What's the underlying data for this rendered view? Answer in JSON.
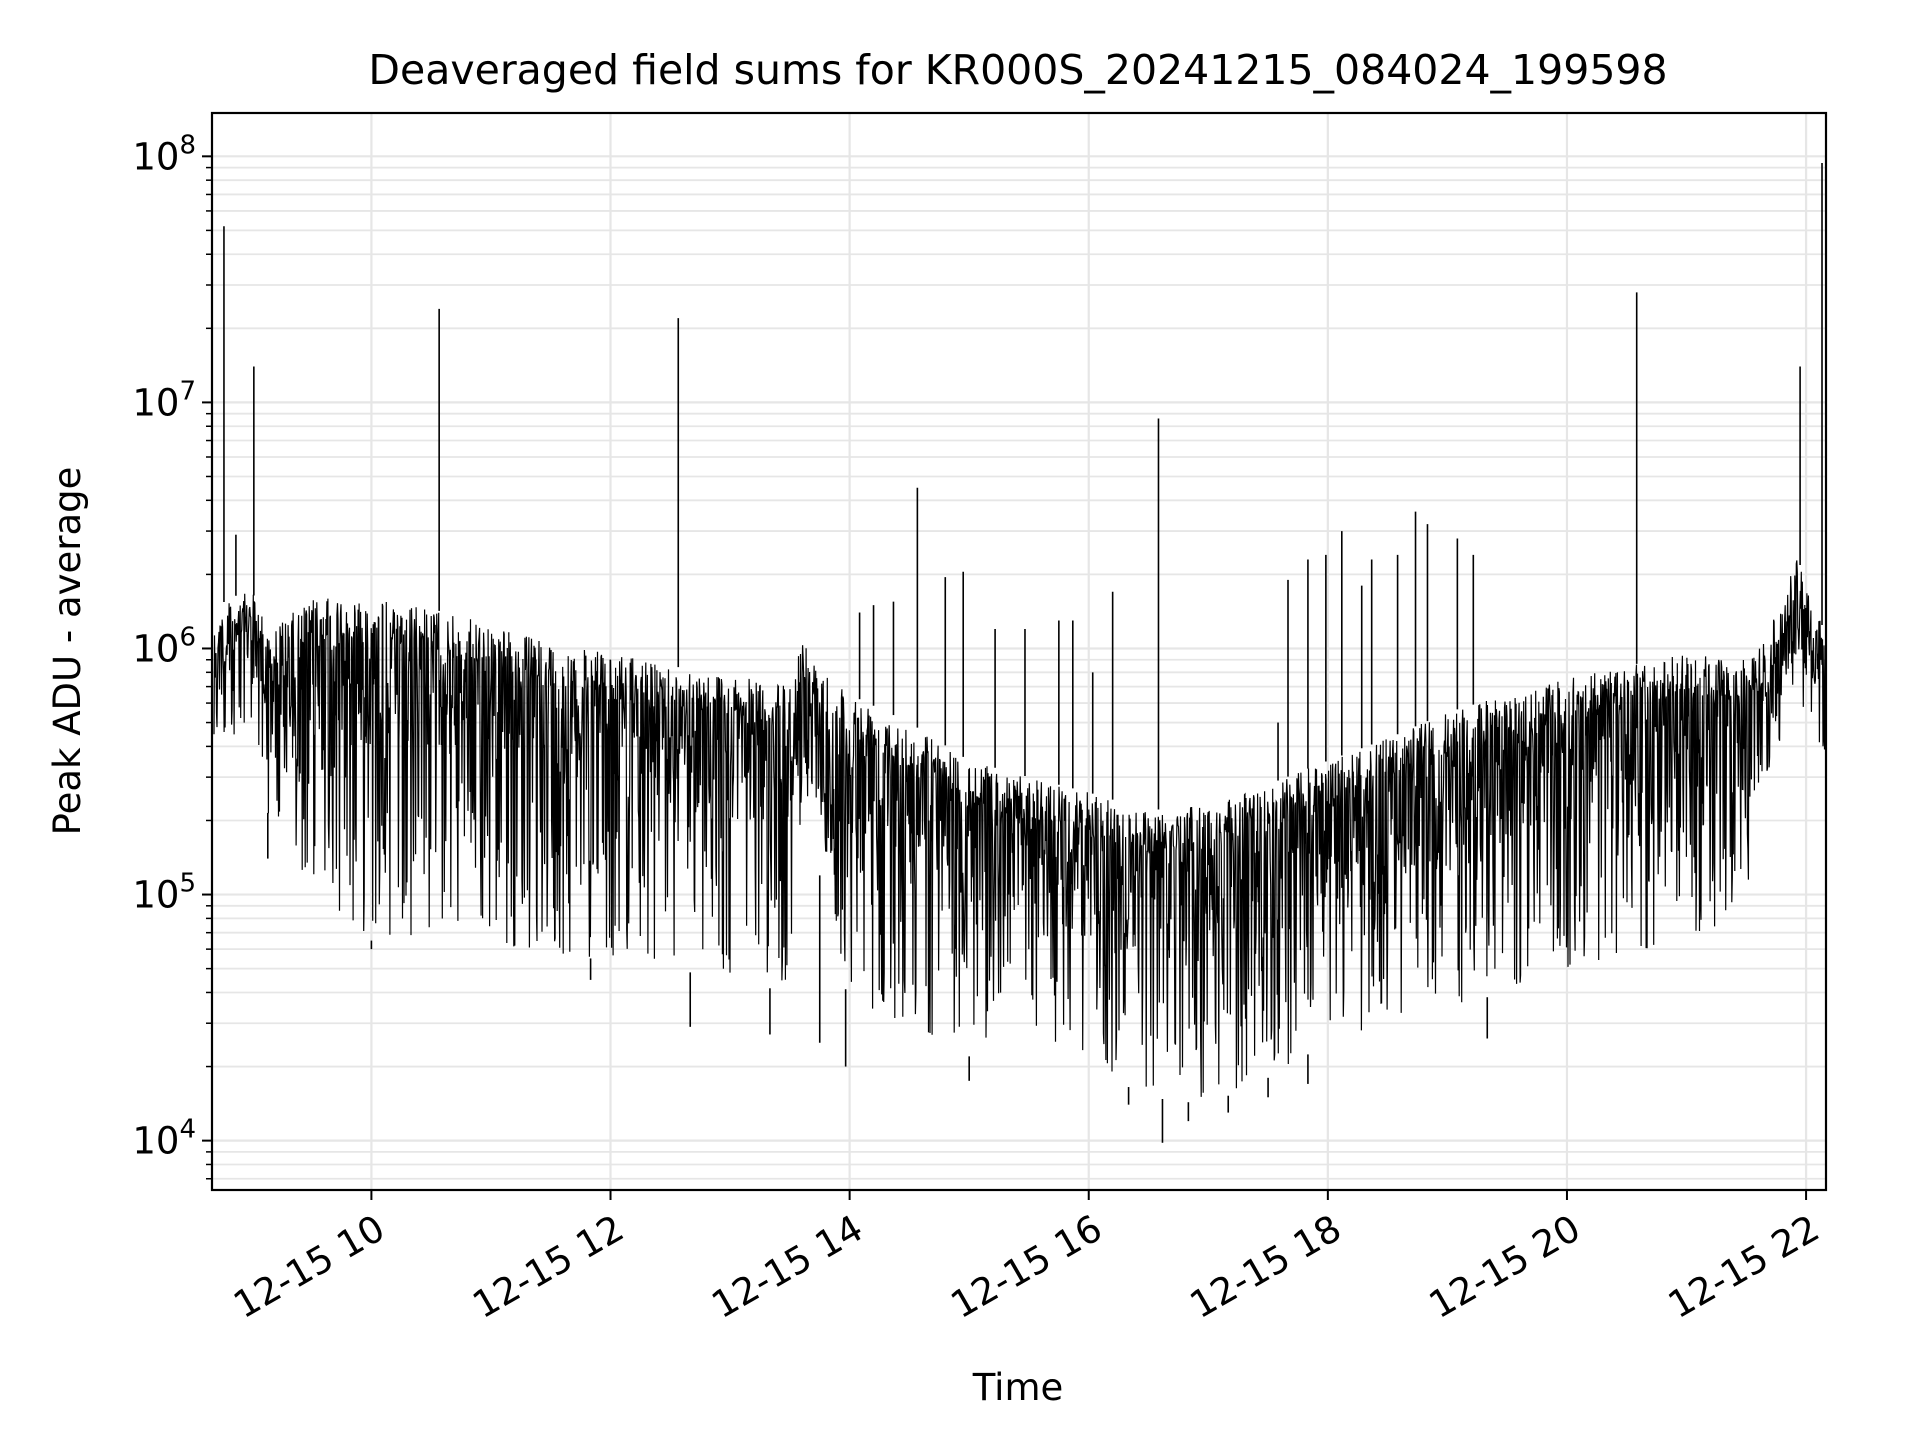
{
  "chart_data": {
    "type": "line",
    "title": "Deaveraged field sums for KR000S_20241215_084024_199598",
    "xlabel": "Time",
    "ylabel": "Peak ADU - average",
    "y_scale": "log",
    "grid": true,
    "x_range": [
      "2024-12-15T08:40",
      "2024-12-15T22:10"
    ],
    "ylim": [
      6300,
      150000000
    ],
    "x_ticks": [
      {
        "time": "2024-12-15T10:00",
        "label": "12-15 10"
      },
      {
        "time": "2024-12-15T12:00",
        "label": "12-15 12"
      },
      {
        "time": "2024-12-15T14:00",
        "label": "12-15 14"
      },
      {
        "time": "2024-12-15T16:00",
        "label": "12-15 16"
      },
      {
        "time": "2024-12-15T18:00",
        "label": "12-15 18"
      },
      {
        "time": "2024-12-15T20:00",
        "label": "12-15 20"
      },
      {
        "time": "2024-12-15T22:00",
        "label": "12-15 22"
      }
    ],
    "y_ticks": [
      {
        "value": 10000,
        "base": "10",
        "exp": "4"
      },
      {
        "value": 100000,
        "base": "10",
        "exp": "5"
      },
      {
        "value": 1000000,
        "base": "10",
        "exp": "6"
      },
      {
        "value": 10000000,
        "base": "10",
        "exp": "7"
      },
      {
        "value": 100000000,
        "base": "10",
        "exp": "8"
      }
    ],
    "series": [
      {
        "color": "#000000",
        "envelope": [
          {
            "time": "2024-12-15T08:41",
            "high": 1300000,
            "low": 300000
          },
          {
            "time": "2024-12-15T08:47",
            "high": 1600000,
            "low": 800000
          },
          {
            "time": "2024-12-15T09:00",
            "high": 1700000,
            "low": 900000
          },
          {
            "time": "2024-12-15T09:10",
            "high": 1200000,
            "low": 150000
          },
          {
            "time": "2024-12-15T09:30",
            "high": 1600000,
            "low": 100000
          },
          {
            "time": "2024-12-15T10:00",
            "high": 1600000,
            "low": 65000
          },
          {
            "time": "2024-12-15T10:30",
            "high": 1450000,
            "low": 70000
          },
          {
            "time": "2024-12-15T11:00",
            "high": 1250000,
            "low": 65000
          },
          {
            "time": "2024-12-15T11:30",
            "high": 1050000,
            "low": 55000
          },
          {
            "time": "2024-12-15T12:00",
            "high": 950000,
            "low": 55000
          },
          {
            "time": "2024-12-15T12:30",
            "high": 850000,
            "low": 50000
          },
          {
            "time": "2024-12-15T13:00",
            "high": 780000,
            "low": 45000
          },
          {
            "time": "2024-12-15T13:30",
            "high": 700000,
            "low": 40000
          },
          {
            "time": "2024-12-15T13:36",
            "high": 1100000,
            "low": 250000
          },
          {
            "time": "2024-12-15T14:00",
            "high": 650000,
            "low": 35000
          },
          {
            "time": "2024-12-15T14:30",
            "high": 500000,
            "low": 30000
          },
          {
            "time": "2024-12-15T15:00",
            "high": 350000,
            "low": 22000
          },
          {
            "time": "2024-12-15T15:30",
            "high": 300000,
            "low": 25000
          },
          {
            "time": "2024-12-15T16:00",
            "high": 260000,
            "low": 20000
          },
          {
            "time": "2024-12-15T16:30",
            "high": 220000,
            "low": 15000
          },
          {
            "time": "2024-12-15T17:00",
            "high": 230000,
            "low": 14000
          },
          {
            "time": "2024-12-15T17:30",
            "high": 280000,
            "low": 18000
          },
          {
            "time": "2024-12-15T18:00",
            "high": 350000,
            "low": 25000
          },
          {
            "time": "2024-12-15T18:30",
            "high": 430000,
            "low": 30000
          },
          {
            "time": "2024-12-15T19:00",
            "high": 550000,
            "low": 35000
          },
          {
            "time": "2024-12-15T19:30",
            "high": 650000,
            "low": 40000
          },
          {
            "time": "2024-12-15T20:00",
            "high": 750000,
            "low": 45000
          },
          {
            "time": "2024-12-15T20:30",
            "high": 850000,
            "low": 50000
          },
          {
            "time": "2024-12-15T21:00",
            "high": 950000,
            "low": 55000
          },
          {
            "time": "2024-12-15T21:30",
            "high": 900000,
            "low": 100000
          },
          {
            "time": "2024-12-15T21:40",
            "high": 1100000,
            "low": 300000
          },
          {
            "time": "2024-12-15T21:55",
            "high": 2400000,
            "low": 900000
          },
          {
            "time": "2024-12-15T22:05",
            "high": 1500000,
            "low": 700000
          },
          {
            "time": "2024-12-15T22:10",
            "high": 1100000,
            "low": 400000
          }
        ],
        "spikes": [
          {
            "time": "2024-12-15T08:46",
            "value": 52000000
          },
          {
            "time": "2024-12-15T08:52",
            "value": 2900000
          },
          {
            "time": "2024-12-15T09:01",
            "value": 14000000
          },
          {
            "time": "2024-12-15T10:34",
            "value": 24000000
          },
          {
            "time": "2024-12-15T12:34",
            "value": 22000000
          },
          {
            "time": "2024-12-15T14:05",
            "value": 1400000
          },
          {
            "time": "2024-12-15T14:12",
            "value": 1500000
          },
          {
            "time": "2024-12-15T14:22",
            "value": 1550000
          },
          {
            "time": "2024-12-15T14:34",
            "value": 4500000
          },
          {
            "time": "2024-12-15T14:48",
            "value": 1950000
          },
          {
            "time": "2024-12-15T14:57",
            "value": 2050000
          },
          {
            "time": "2024-12-15T15:13",
            "value": 1200000
          },
          {
            "time": "2024-12-15T15:28",
            "value": 1200000
          },
          {
            "time": "2024-12-15T15:45",
            "value": 1300000
          },
          {
            "time": "2024-12-15T15:52",
            "value": 1300000
          },
          {
            "time": "2024-12-15T16:02",
            "value": 800000
          },
          {
            "time": "2024-12-15T16:12",
            "value": 1700000
          },
          {
            "time": "2024-12-15T16:35",
            "value": 8600000
          },
          {
            "time": "2024-12-15T17:35",
            "value": 500000
          },
          {
            "time": "2024-12-15T17:40",
            "value": 1900000
          },
          {
            "time": "2024-12-15T17:50",
            "value": 2300000
          },
          {
            "time": "2024-12-15T17:59",
            "value": 2400000
          },
          {
            "time": "2024-12-15T18:07",
            "value": 3000000
          },
          {
            "time": "2024-12-15T18:17",
            "value": 1800000
          },
          {
            "time": "2024-12-15T18:22",
            "value": 2300000
          },
          {
            "time": "2024-12-15T18:35",
            "value": 2400000
          },
          {
            "time": "2024-12-15T18:44",
            "value": 3600000
          },
          {
            "time": "2024-12-15T18:50",
            "value": 3200000
          },
          {
            "time": "2024-12-15T19:05",
            "value": 2800000
          },
          {
            "time": "2024-12-15T19:13",
            "value": 2400000
          },
          {
            "time": "2024-12-15T20:35",
            "value": 28000000
          },
          {
            "time": "2024-12-15T21:57",
            "value": 14000000
          },
          {
            "time": "2024-12-15T22:08",
            "value": 94000000
          }
        ],
        "dips": [
          {
            "time": "2024-12-15T09:08",
            "value": 140000
          },
          {
            "time": "2024-12-15T10:00",
            "value": 60000
          },
          {
            "time": "2024-12-15T11:50",
            "value": 45000
          },
          {
            "time": "2024-12-15T12:40",
            "value": 29000
          },
          {
            "time": "2024-12-15T13:20",
            "value": 27000
          },
          {
            "time": "2024-12-15T13:45",
            "value": 25000
          },
          {
            "time": "2024-12-15T13:58",
            "value": 20000
          },
          {
            "time": "2024-12-15T15:00",
            "value": 17500
          },
          {
            "time": "2024-12-15T16:20",
            "value": 14000
          },
          {
            "time": "2024-12-15T16:37",
            "value": 9800
          },
          {
            "time": "2024-12-15T16:50",
            "value": 12000
          },
          {
            "time": "2024-12-15T17:10",
            "value": 13000
          },
          {
            "time": "2024-12-15T17:30",
            "value": 15000
          },
          {
            "time": "2024-12-15T17:50",
            "value": 17000
          },
          {
            "time": "2024-12-15T19:20",
            "value": 26000
          }
        ]
      }
    ]
  }
}
